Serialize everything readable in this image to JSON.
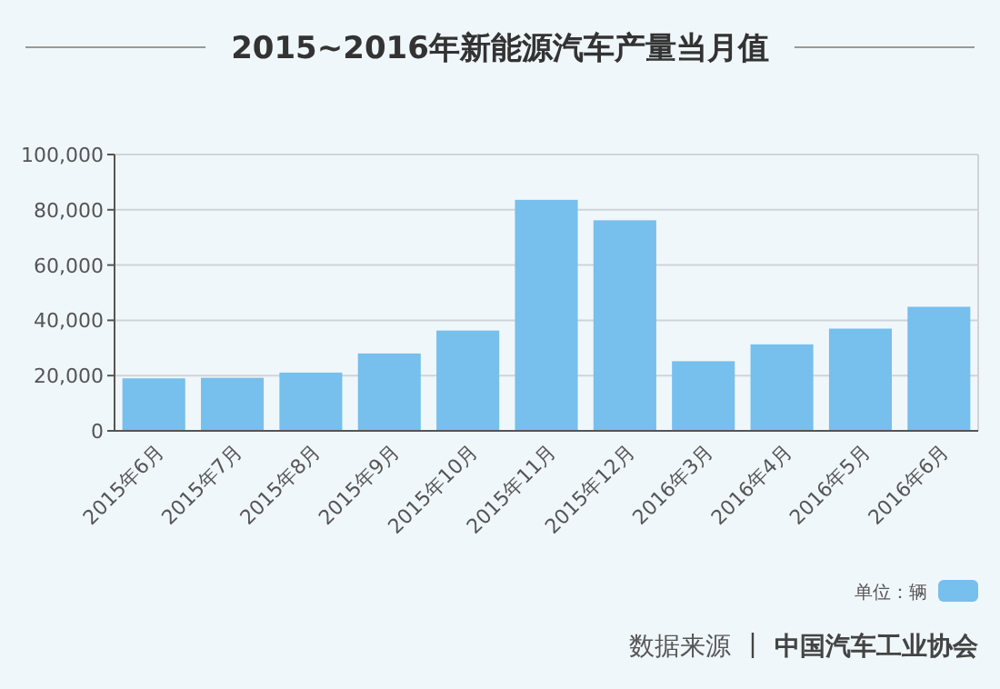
{
  "chart_data": {
    "type": "bar",
    "title": "2015~2016年新能源汽车产量当月值",
    "categories": [
      "2015年6月",
      "2015年7月",
      "2015年8月",
      "2015年9月",
      "2015年10月",
      "2015年11月",
      "2015年12月",
      "2016年3月",
      "2016年4月",
      "2016年5月",
      "2016年6月"
    ],
    "series": [
      {
        "name": "单位：辆",
        "color": "#77bfec",
        "values": [
          19000,
          19200,
          21100,
          28000,
          36300,
          83600,
          76200,
          25200,
          31300,
          37000,
          44900
        ]
      }
    ],
    "ylim": [
      0,
      100000
    ],
    "yticks": [
      0,
      {
        "value": 20000,
        "label": "20,000"
      },
      {
        "value": 40000,
        "label": "40,000"
      },
      {
        "value": 60000,
        "label": "60,000"
      },
      {
        "value": 80000,
        "label": "80,000"
      },
      {
        "value": 100000,
        "label": "100,000"
      }
    ],
    "grid": "y",
    "legend": "bottom right",
    "annotations": [
      "数据来源",
      "中国汽车工业协会"
    ]
  }
}
